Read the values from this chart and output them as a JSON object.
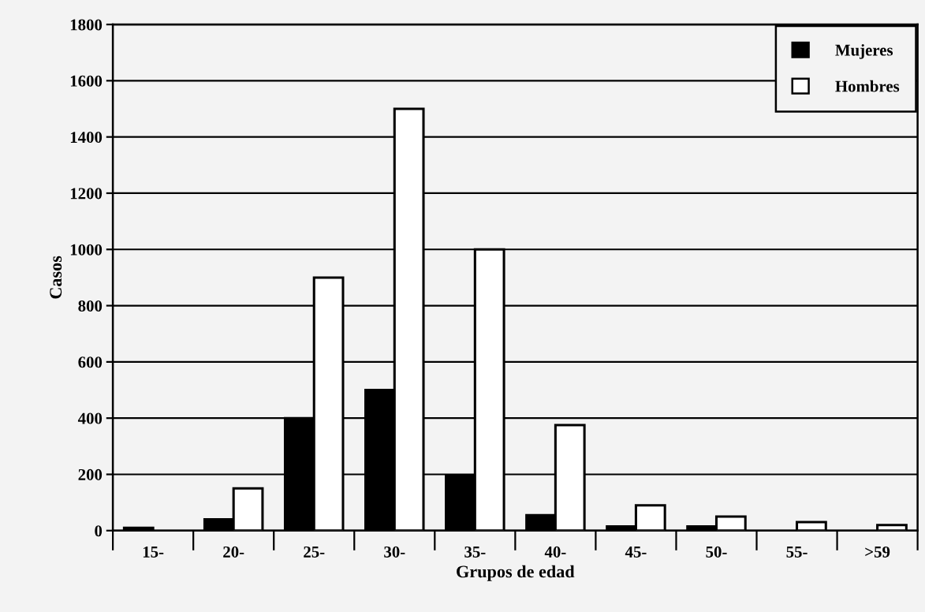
{
  "chart_data": {
    "type": "bar",
    "xlabel": "Grupos de edad",
    "ylabel": "Casos",
    "categories": [
      "15-",
      "20-",
      "25-",
      "30-",
      "35-",
      "40-",
      "45-",
      "50-",
      "55-",
      ">59"
    ],
    "series": [
      {
        "name": "Mujeres",
        "color": "#000000",
        "values": [
          10,
          40,
          400,
          500,
          195,
          55,
          15,
          15,
          null,
          null
        ]
      },
      {
        "name": "Hombres",
        "color": "#ffffff",
        "values": [
          null,
          150,
          900,
          1500,
          1000,
          375,
          90,
          50,
          30,
          20
        ]
      }
    ],
    "ylim": [
      0,
      1800
    ],
    "yticks": [
      0,
      200,
      400,
      600,
      800,
      1000,
      1200,
      1400,
      1600,
      1800
    ],
    "grid": "y",
    "legend": "top right"
  }
}
